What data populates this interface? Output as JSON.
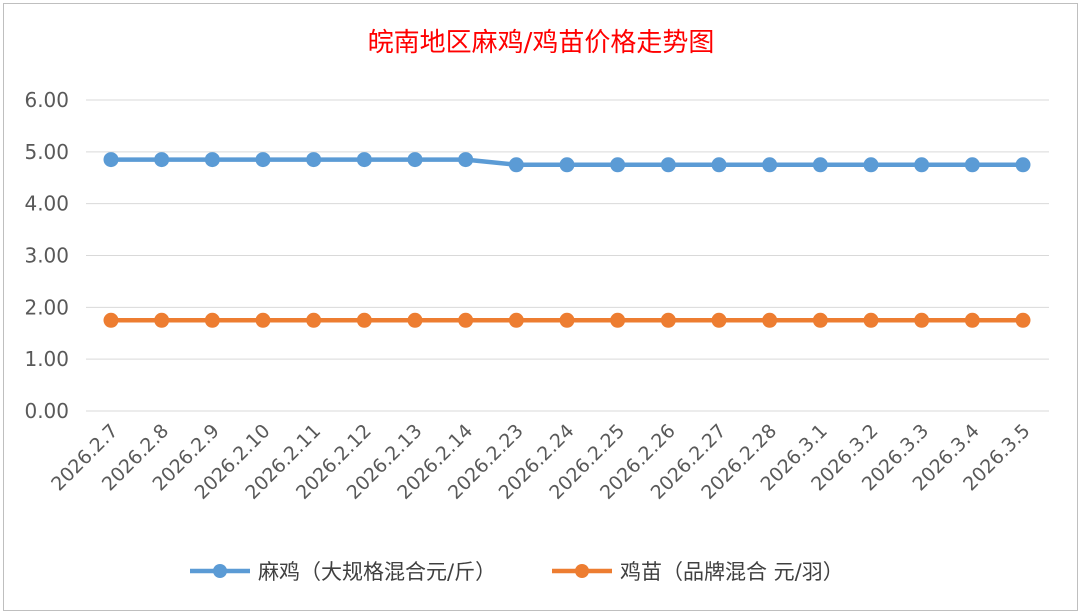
{
  "chart_data": {
    "type": "line",
    "title": "皖南地区麻鸡/鸡苗价格走势图",
    "xlabel": "",
    "ylabel": "",
    "categories": [
      "2026.2.7",
      "2026.2.8",
      "2026.2.9",
      "2026.2.10",
      "2026.2.11",
      "2026.2.12",
      "2026.2.13",
      "2026.2.14",
      "2026.2.23",
      "2026.2.24",
      "2026.2.25",
      "2026.2.26",
      "2026.2.27",
      "2026.2.28",
      "2026.3.1",
      "2026.3.2",
      "2026.3.3",
      "2026.3.4",
      "2026.3.5"
    ],
    "ylim": [
      0,
      6
    ],
    "yticks": [
      "0.00",
      "1.00",
      "2.00",
      "3.00",
      "4.00",
      "5.00",
      "6.00"
    ],
    "grid": true,
    "legend_position": "bottom",
    "series": [
      {
        "name": "麻鸡（大规格混合元/斤）",
        "color": "#5b9bd5",
        "values": [
          4.85,
          4.85,
          4.85,
          4.85,
          4.85,
          4.85,
          4.85,
          4.85,
          4.75,
          4.75,
          4.75,
          4.75,
          4.75,
          4.75,
          4.75,
          4.75,
          4.75,
          4.75,
          4.75
        ]
      },
      {
        "name": "鸡苗（品牌混合 元/羽）",
        "color": "#ed7d31",
        "values": [
          1.75,
          1.75,
          1.75,
          1.75,
          1.75,
          1.75,
          1.75,
          1.75,
          1.75,
          1.75,
          1.75,
          1.75,
          1.75,
          1.75,
          1.75,
          1.75,
          1.75,
          1.75,
          1.75
        ]
      }
    ]
  }
}
